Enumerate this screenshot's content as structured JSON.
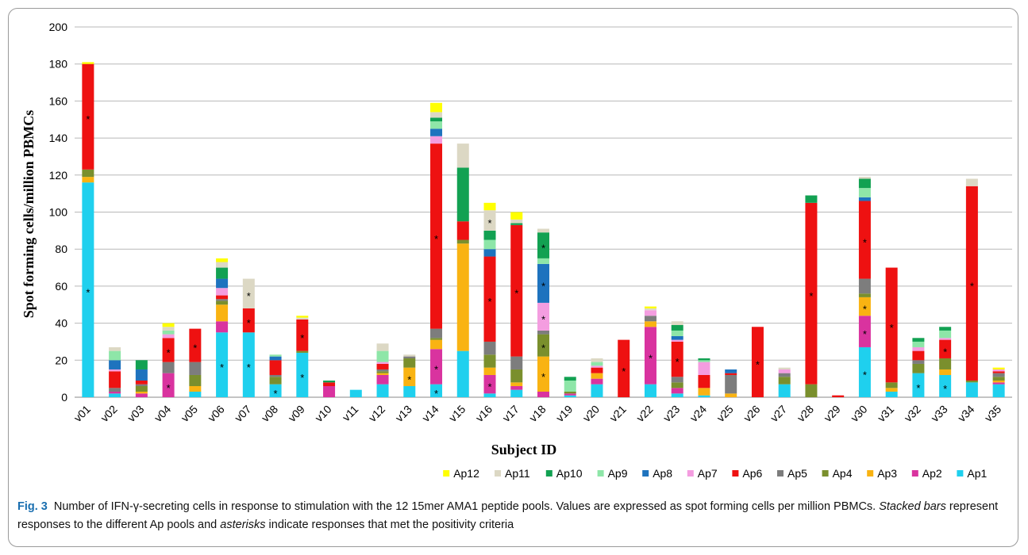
{
  "caption": {
    "figure_label": "Fig. 3",
    "parts": [
      "Number of IFN-γ-secreting cells in response to stimulation with the 12 15mer AMA1 peptide pools. Values are expressed as spot forming cells per million PBMCs. ",
      "Stacked bars",
      " represent responses to the different Ap pools and ",
      "asterisks",
      " indicate responses that met the positivity criteria"
    ]
  },
  "chart_data": {
    "type": "bar",
    "stacked": true,
    "xlabel": "Subject ID",
    "ylabel": "Spot forming cells/million PBMCs",
    "ylim": [
      0,
      200
    ],
    "yticks": [
      0,
      20,
      40,
      60,
      80,
      100,
      120,
      140,
      160,
      180,
      200
    ],
    "grid": true,
    "legend_position": "bottom-right",
    "categories": [
      "v01",
      "v02",
      "v03",
      "v04",
      "v05",
      "v06",
      "v07",
      "v08",
      "v09",
      "v10",
      "v11",
      "v12",
      "v13",
      "v14",
      "v15",
      "v16",
      "v17",
      "v18",
      "v19",
      "v20",
      "v21",
      "v22",
      "v23",
      "v24",
      "v25",
      "v26",
      "v27",
      "v28",
      "v29",
      "v30",
      "v31",
      "v32",
      "v33",
      "v34",
      "v35"
    ],
    "series": [
      {
        "name": "Ap1",
        "color": "#1fd0ee",
        "values": [
          116,
          2,
          0,
          0,
          3,
          35,
          35,
          7,
          24,
          0,
          4,
          7,
          6,
          7,
          25,
          2,
          4,
          0,
          1,
          7,
          0,
          7,
          2,
          1,
          0,
          0,
          7,
          0,
          0,
          27,
          3,
          13,
          12,
          8,
          7
        ]
      },
      {
        "name": "Ap2",
        "color": "#d9339f",
        "values": [
          0,
          1,
          2,
          13,
          0,
          6,
          0,
          0,
          0,
          6,
          0,
          5,
          0,
          19,
          0,
          10,
          2,
          3,
          1,
          3,
          0,
          31,
          3,
          0,
          0,
          0,
          0,
          0,
          0,
          17,
          0,
          0,
          0,
          0,
          1
        ]
      },
      {
        "name": "Ap3",
        "color": "#f9b312",
        "values": [
          3,
          0,
          1,
          0,
          3,
          9,
          0,
          0,
          0,
          0,
          0,
          1,
          10,
          5,
          58,
          4,
          2,
          19,
          0,
          3,
          0,
          3,
          0,
          4,
          2,
          0,
          0,
          0,
          0,
          10,
          2,
          0,
          3,
          0,
          1
        ]
      },
      {
        "name": "Ap4",
        "color": "#7a8f2d",
        "values": [
          4,
          0,
          3,
          0,
          6,
          2,
          0,
          4,
          1,
          0,
          0,
          1,
          5,
          1,
          2,
          7,
          7,
          12,
          1,
          0,
          0,
          0,
          3,
          0,
          0,
          0,
          4,
          7,
          0,
          2,
          3,
          5,
          6,
          1,
          2
        ]
      },
      {
        "name": "Ap5",
        "color": "#7d7d7d",
        "values": [
          0,
          2,
          1,
          6,
          7,
          1,
          0,
          1,
          0,
          0,
          0,
          1,
          1,
          5,
          0,
          7,
          7,
          2,
          0,
          0,
          0,
          3,
          3,
          0,
          10,
          0,
          2,
          0,
          0,
          8,
          0,
          2,
          0,
          0,
          2
        ]
      },
      {
        "name": "Ap6",
        "color": "#ee1111",
        "values": [
          57,
          9,
          2,
          13,
          18,
          2,
          13,
          8,
          17,
          2,
          0,
          3,
          0,
          100,
          10,
          46,
          71,
          0,
          0,
          3,
          31,
          0,
          19,
          7,
          1,
          38,
          0,
          98,
          1,
          42,
          62,
          5,
          10,
          105,
          1
        ]
      },
      {
        "name": "Ap7",
        "color": "#f49de0",
        "values": [
          0,
          1,
          0,
          2,
          0,
          4,
          0,
          0,
          0,
          0,
          0,
          1,
          0,
          4,
          0,
          0,
          0,
          15,
          0,
          1,
          0,
          3,
          1,
          7,
          0,
          0,
          2,
          0,
          0,
          0,
          0,
          2,
          1,
          0,
          1
        ]
      },
      {
        "name": "Ap8",
        "color": "#1e73be",
        "values": [
          0,
          5,
          6,
          0,
          0,
          5,
          0,
          2,
          0,
          0,
          0,
          0,
          0,
          4,
          0,
          4,
          0,
          21,
          0,
          0,
          0,
          0,
          2,
          0,
          2,
          0,
          0,
          0,
          0,
          2,
          0,
          0,
          0,
          0,
          0
        ]
      },
      {
        "name": "Ap9",
        "color": "#8ee6a8",
        "values": [
          0,
          5,
          0,
          2,
          0,
          0,
          0,
          1,
          0,
          0,
          0,
          6,
          0,
          4,
          0,
          5,
          0,
          3,
          6,
          2,
          0,
          0,
          3,
          1,
          0,
          0,
          0,
          0,
          0,
          5,
          0,
          3,
          4,
          0,
          0
        ]
      },
      {
        "name": "Ap10",
        "color": "#12a152",
        "values": [
          0,
          0,
          5,
          0,
          0,
          6,
          0,
          0,
          0,
          1,
          0,
          0,
          0,
          2,
          29,
          5,
          1,
          14,
          2,
          0,
          0,
          0,
          3,
          1,
          0,
          0,
          0,
          4,
          0,
          5,
          0,
          2,
          2,
          0,
          0
        ]
      },
      {
        "name": "Ap11",
        "color": "#dcd8c4",
        "values": [
          0,
          2,
          0,
          2,
          0,
          3,
          16,
          0,
          1,
          0,
          0,
          4,
          1,
          3,
          13,
          11,
          2,
          2,
          0,
          2,
          0,
          1,
          2,
          0,
          0,
          0,
          1,
          0,
          0,
          1,
          0,
          0,
          0,
          4,
          0
        ]
      },
      {
        "name": "Ap12",
        "color": "#ffff00",
        "values": [
          1,
          0,
          0,
          2,
          0,
          2,
          0,
          0,
          1,
          0,
          0,
          0,
          0,
          5,
          0,
          4,
          4,
          0,
          0,
          0,
          0,
          1,
          0,
          0,
          0,
          0,
          0,
          0,
          0,
          0,
          0,
          0,
          0,
          0,
          1
        ]
      }
    ],
    "asterisks": [
      {
        "category": "v01",
        "series": "Ap1"
      },
      {
        "category": "v01",
        "series": "Ap6"
      },
      {
        "category": "v04",
        "series": "Ap2"
      },
      {
        "category": "v04",
        "series": "Ap6"
      },
      {
        "category": "v05",
        "series": "Ap6"
      },
      {
        "category": "v06",
        "series": "Ap1"
      },
      {
        "category": "v07",
        "series": "Ap1"
      },
      {
        "category": "v07",
        "series": "Ap6"
      },
      {
        "category": "v07",
        "series": "Ap11"
      },
      {
        "category": "v08",
        "series": "Ap1"
      },
      {
        "category": "v09",
        "series": "Ap1"
      },
      {
        "category": "v09",
        "series": "Ap6"
      },
      {
        "category": "v13",
        "series": "Ap3"
      },
      {
        "category": "v14",
        "series": "Ap1"
      },
      {
        "category": "v14",
        "series": "Ap2"
      },
      {
        "category": "v14",
        "series": "Ap6"
      },
      {
        "category": "v16",
        "series": "Ap2"
      },
      {
        "category": "v16",
        "series": "Ap6"
      },
      {
        "category": "v16",
        "series": "Ap11"
      },
      {
        "category": "v17",
        "series": "Ap6"
      },
      {
        "category": "v18",
        "series": "Ap3"
      },
      {
        "category": "v18",
        "series": "Ap4"
      },
      {
        "category": "v18",
        "series": "Ap7"
      },
      {
        "category": "v18",
        "series": "Ap8"
      },
      {
        "category": "v18",
        "series": "Ap10"
      },
      {
        "category": "v21",
        "series": "Ap6"
      },
      {
        "category": "v22",
        "series": "Ap2"
      },
      {
        "category": "v23",
        "series": "Ap6"
      },
      {
        "category": "v26",
        "series": "Ap6"
      },
      {
        "category": "v28",
        "series": "Ap6"
      },
      {
        "category": "v30",
        "series": "Ap1"
      },
      {
        "category": "v30",
        "series": "Ap2"
      },
      {
        "category": "v30",
        "series": "Ap3"
      },
      {
        "category": "v30",
        "series": "Ap6"
      },
      {
        "category": "v31",
        "series": "Ap6"
      },
      {
        "category": "v32",
        "series": "Ap1"
      },
      {
        "category": "v33",
        "series": "Ap1"
      },
      {
        "category": "v33",
        "series": "Ap6"
      },
      {
        "category": "v34",
        "series": "Ap6"
      }
    ],
    "legend_order": [
      "Ap12",
      "Ap11",
      "Ap10",
      "Ap9",
      "Ap8",
      "Ap7",
      "Ap6",
      "Ap5",
      "Ap4",
      "Ap3",
      "Ap2",
      "Ap1"
    ]
  }
}
